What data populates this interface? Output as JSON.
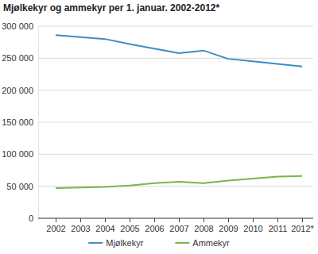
{
  "chart_data": {
    "type": "line",
    "title": "Mjølkekyr og ammekyr per 1. januar. 2002-2012*",
    "categories": [
      "2002",
      "2003",
      "2004",
      "2005",
      "2006",
      "2007",
      "2008",
      "2009",
      "2010",
      "2011",
      "2012*"
    ],
    "series": [
      {
        "name": "Mjølkekyr",
        "color": "#3c8dc5",
        "values": [
          286000,
          283000,
          280000,
          272000,
          265000,
          258000,
          262000,
          249000,
          245000,
          241000,
          237000
        ]
      },
      {
        "name": "Ammekyr",
        "color": "#7ab648",
        "values": [
          47000,
          48000,
          49000,
          51000,
          55000,
          57000,
          55000,
          59000,
          62000,
          65000,
          66000
        ]
      }
    ],
    "ylim": [
      0,
      300000
    ],
    "yticks": [
      0,
      {
        "value": 50000,
        "label": "50 000"
      },
      {
        "value": 100000,
        "label": "100 000"
      },
      {
        "value": 150000,
        "label": "150 000"
      },
      {
        "value": 200000,
        "label": "200 000"
      },
      {
        "value": 250000,
        "label": "250 000"
      },
      {
        "value": 300000,
        "label": "300 000"
      }
    ],
    "grid": true,
    "legend": "bottom"
  }
}
